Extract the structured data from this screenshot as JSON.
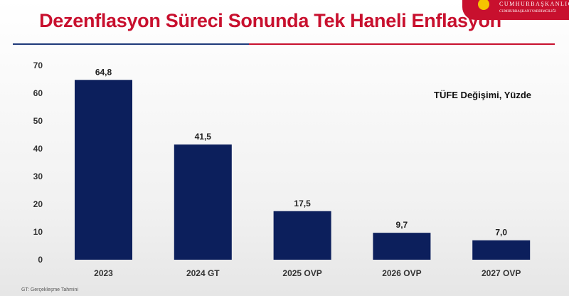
{
  "chart_data": {
    "type": "bar",
    "title": "Dezenflasyon Süreci Sonunda Tek Haneli Enflasyon",
    "subtitle": "TÜFE Değişimi, Yüzde",
    "categories": [
      "2023",
      "2024 GT",
      "2025 OVP",
      "2026 OVP",
      "2027 OVP"
    ],
    "values": [
      64.8,
      41.5,
      17.5,
      9.7,
      7.0
    ],
    "data_labels": [
      "64,8",
      "41,5",
      "17,5",
      "9,7",
      "7,0"
    ],
    "yticks": [
      0,
      10,
      20,
      30,
      40,
      50,
      60,
      70
    ],
    "ylim": [
      0,
      70
    ],
    "grid": false,
    "bar_color": "#0c1f5c",
    "footnote": "GT: Gerçekleşme Tahmini"
  },
  "colors": {
    "title": "#c8102e",
    "line_left": "#1f3a7a",
    "line_right": "#c8102e"
  },
  "logo": {
    "line1": "CUMHURBAŞKANLIĞI",
    "line2": "CUMHURBAŞKANI YARDIMCILIĞI"
  }
}
